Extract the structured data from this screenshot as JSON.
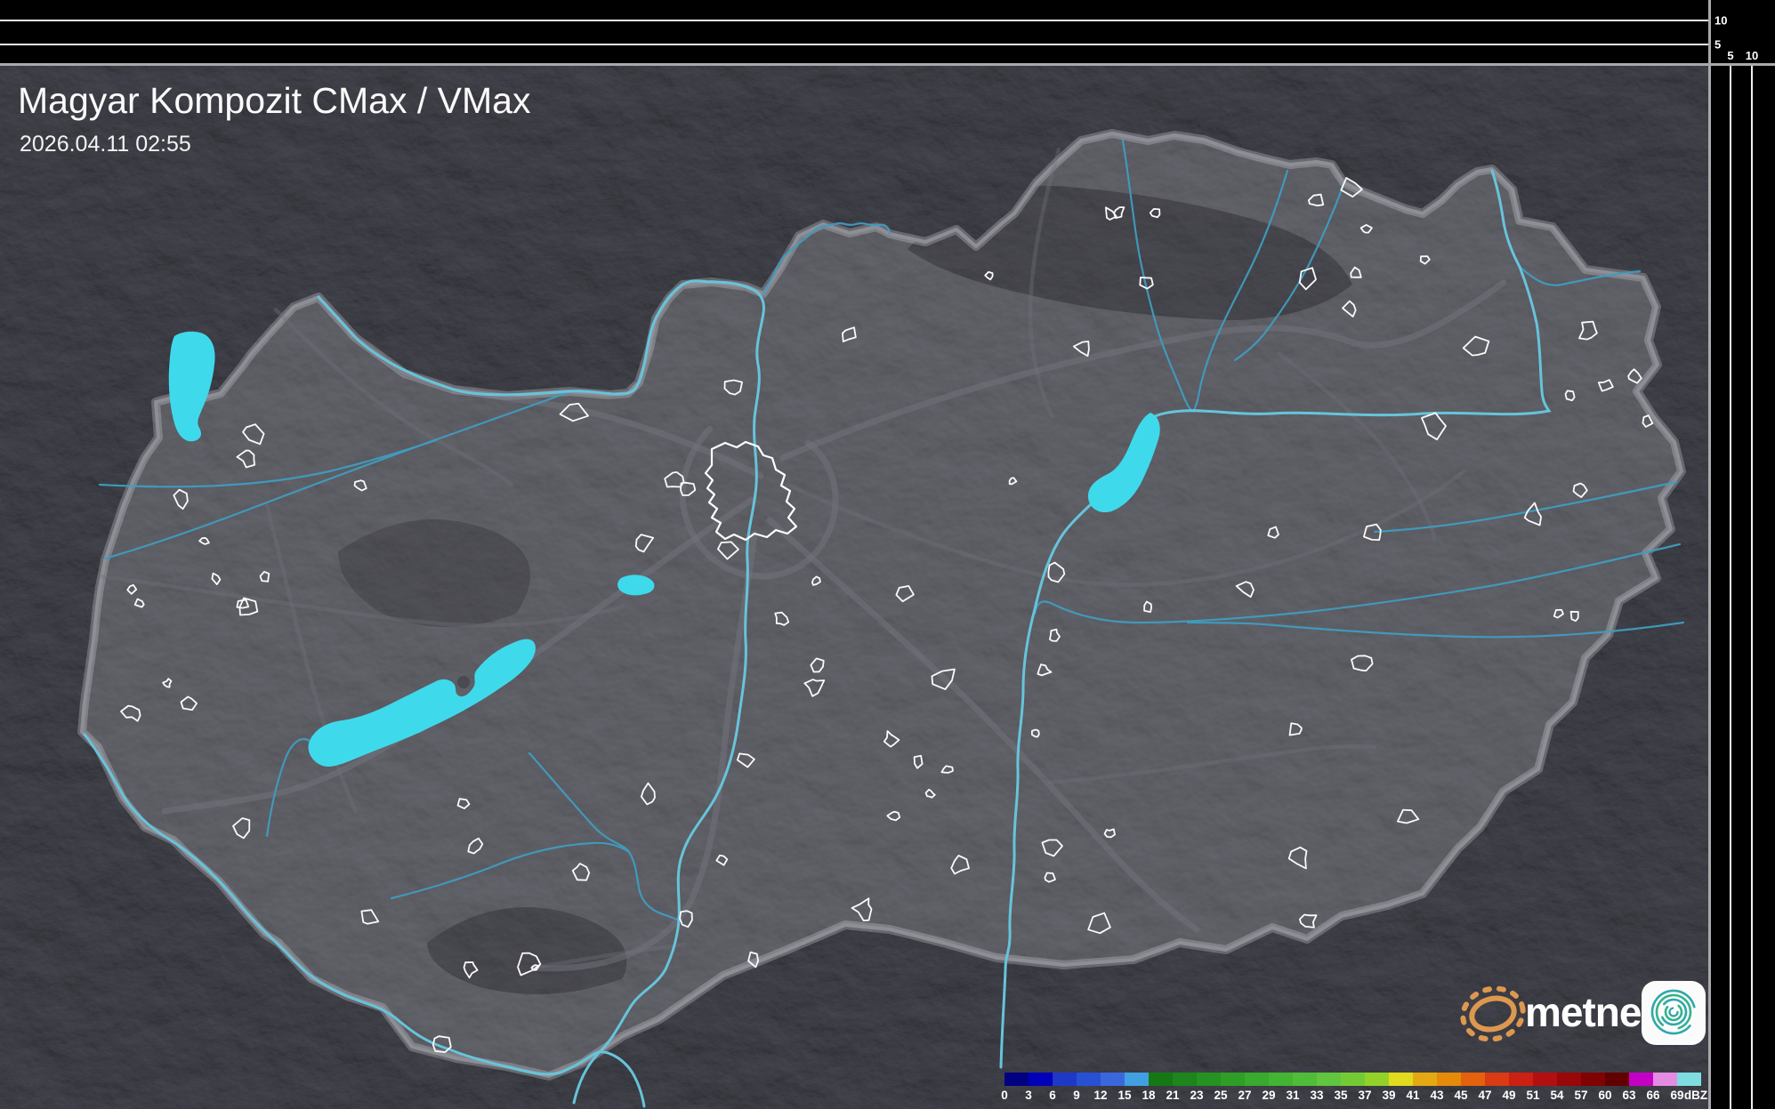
{
  "header": {
    "title": "Magyar Kompozit CMax / VMax",
    "timestamp": "2026.04.11 02:55"
  },
  "profile_axes": {
    "top": {
      "labels": [
        "10",
        "5"
      ]
    },
    "right": {
      "labels": [
        "5",
        "10"
      ]
    }
  },
  "legend": {
    "unit": "dBZ",
    "tick_values": [
      0,
      3,
      6,
      9,
      12,
      15,
      18,
      21,
      23,
      25,
      27,
      29,
      31,
      33,
      35,
      37,
      39,
      41,
      43,
      45,
      47,
      49,
      51,
      54,
      57,
      60,
      63,
      66,
      69
    ],
    "cell_colors": [
      "#000082",
      "#0000b8",
      "#1e38c8",
      "#2850d2",
      "#3a68dc",
      "#41a0e0",
      "#157815",
      "#1d851b",
      "#259221",
      "#2e9e27",
      "#38aa2d",
      "#43b433",
      "#50bd39",
      "#60c53f",
      "#74ca34",
      "#92d228",
      "#e2da1e",
      "#e4a912",
      "#e68a0a",
      "#e4610e",
      "#da3a14",
      "#cc2012",
      "#b21010",
      "#990808",
      "#7f0303",
      "#620000",
      "#c400c4",
      "#e48ce4",
      "#7edde2"
    ]
  },
  "logo": {
    "wordmark": "metnet"
  },
  "map_colors": {
    "lake": "#3fd9ec",
    "river": "#3f9cbf",
    "major_river": "#66c4da",
    "border": "#8e8e96",
    "road": "#74747e",
    "settlement_outline": "#fafafa"
  }
}
